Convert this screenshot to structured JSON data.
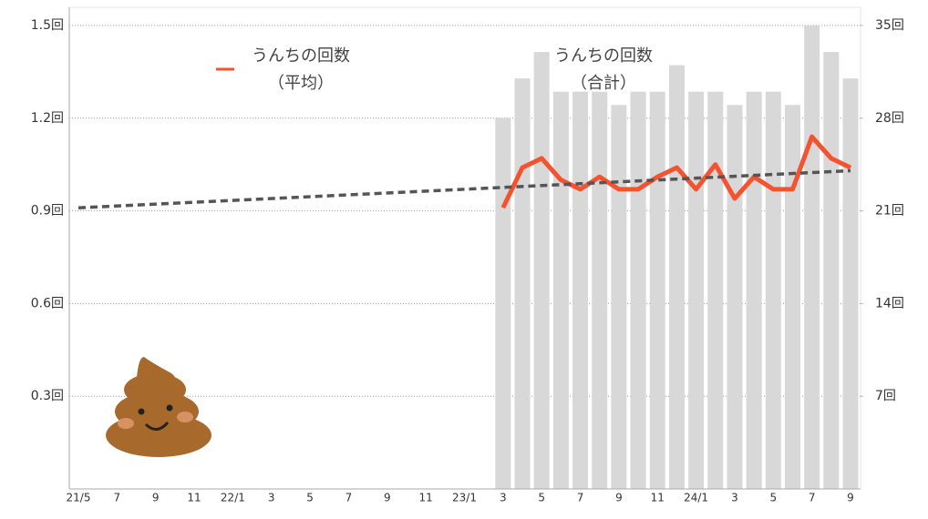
{
  "chart_data": {
    "type": "bar_line",
    "categories": [
      "21/5",
      null,
      "7",
      null,
      "9",
      null,
      "11",
      null,
      "22/1",
      null,
      "3",
      null,
      "5",
      null,
      "7",
      null,
      "9",
      null,
      "11",
      null,
      "23/1",
      null,
      "3",
      null,
      "5",
      null,
      "7",
      null,
      "9",
      null,
      "11",
      null,
      "24/1",
      null,
      "3",
      null,
      "5",
      null,
      "7",
      null,
      "9"
    ],
    "series": [
      {
        "name": "うんちの回数",
        "name_note": "（合計）",
        "color": "#d8d8d8",
        "axis": "y2",
        "values": [
          null,
          null,
          null,
          null,
          null,
          null,
          null,
          null,
          null,
          null,
          null,
          null,
          null,
          null,
          null,
          null,
          null,
          null,
          null,
          null,
          null,
          null,
          28,
          31,
          33,
          30,
          30,
          30,
          29,
          30,
          30,
          32,
          30,
          30,
          29,
          30,
          30,
          29,
          35,
          33,
          31
        ]
      },
      {
        "name": "うんちの回数",
        "name_note": "（平均）",
        "color": "#f4532f",
        "axis": "y",
        "values": [
          null,
          null,
          null,
          null,
          null,
          null,
          null,
          null,
          null,
          null,
          null,
          null,
          null,
          null,
          null,
          null,
          null,
          null,
          null,
          null,
          null,
          null,
          0.91,
          1.04,
          1.07,
          1.0,
          0.97,
          1.01,
          0.97,
          0.97,
          1.01,
          1.04,
          0.97,
          1.05,
          0.94,
          1.01,
          0.97,
          0.97,
          1.14,
          1.07,
          1.04
        ]
      }
    ],
    "trendline": {
      "color": "#555555",
      "values": [
        0.91,
        1.03
      ]
    },
    "ylim": [
      0,
      1.5
    ],
    "yticks": [
      {
        "value": 0.3,
        "label": "0.3回"
      },
      {
        "value": 0.6,
        "label": "0.6回"
      },
      {
        "value": 0.9,
        "label": "0.9回"
      },
      {
        "value": 1.2,
        "label": "1.2回"
      },
      {
        "value": 1.5,
        "label": "1.5回"
      }
    ],
    "y2lim": [
      0,
      35
    ],
    "y2ticks": [
      {
        "value": 7,
        "label": "7回"
      },
      {
        "value": 14,
        "label": "14回"
      },
      {
        "value": 21,
        "label": "21回"
      },
      {
        "value": 28,
        "label": "28回"
      },
      {
        "value": 35,
        "label": "35回"
      }
    ],
    "grid": true
  }
}
